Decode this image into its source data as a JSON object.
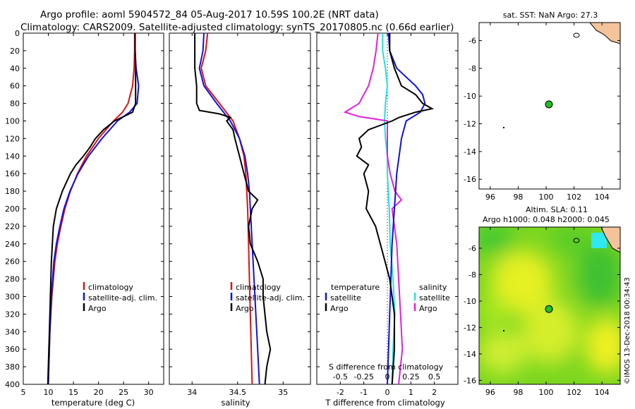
{
  "header": {
    "line1": "Argo profile: aoml 5904572_84 05-Aug-2017 10.59S 100.2E (NRT data)",
    "line2": "Climatology: CARS2009. Satellite-adjusted climatology: synTS_20170805.nc (0.66d earlier)"
  },
  "colors": {
    "climatology": "#e01010",
    "satellite": "#1010e0",
    "argo": "#000000",
    "sat_salinity": "#20e0e0",
    "argo_salinity": "#e020e0",
    "land": "#f5c39a",
    "marker": "#20c020"
  },
  "watermark": "©IMOS 13-Dec-2018 00:34:43",
  "chart_data": [
    {
      "type": "line",
      "name": "temperature",
      "xlabel": "temperature (deg C)",
      "xlim": [
        5,
        33
      ],
      "xticks": [
        5,
        10,
        15,
        20,
        25,
        30
      ],
      "ylim": [
        0,
        400
      ],
      "yticks": [
        0,
        20,
        40,
        60,
        80,
        100,
        120,
        140,
        160,
        180,
        200,
        220,
        240,
        260,
        280,
        300,
        320,
        340,
        360,
        380,
        400
      ],
      "legend": [
        "climatology",
        "satellite-adj. clim.",
        "Argo"
      ],
      "series": [
        {
          "name": "climatology",
          "color": "#e01010",
          "depth": [
            0,
            20,
            40,
            60,
            80,
            90,
            100,
            120,
            140,
            160,
            180,
            200,
            220,
            240,
            260,
            300,
            340,
            380,
            400
          ],
          "values": [
            27.2,
            27.2,
            27.1,
            26.8,
            25.9,
            24.8,
            23.0,
            20.0,
            17.6,
            15.8,
            14.4,
            13.3,
            12.5,
            11.8,
            11.3,
            10.7,
            10.3,
            10.1,
            10.0
          ]
        },
        {
          "name": "satellite-adj. clim.",
          "color": "#1010e0",
          "depth": [
            0,
            20,
            40,
            60,
            80,
            90,
            100,
            120,
            140,
            160,
            180,
            200,
            220,
            240,
            260,
            300,
            340,
            380,
            400
          ],
          "values": [
            27.3,
            27.3,
            27.5,
            28.0,
            27.7,
            26.2,
            23.8,
            20.7,
            18.0,
            15.9,
            14.3,
            13.1,
            12.3,
            11.6,
            11.1,
            10.6,
            10.3,
            10.1,
            10.0
          ]
        },
        {
          "name": "Argo",
          "color": "#000000",
          "depth": [
            0,
            20,
            40,
            60,
            80,
            90,
            100,
            110,
            120,
            130,
            140,
            150,
            160,
            170,
            180,
            200,
            220,
            240,
            260,
            300,
            340,
            380,
            400
          ],
          "values": [
            27.3,
            27.3,
            27.4,
            27.4,
            27.4,
            26.8,
            23.2,
            21.0,
            19.4,
            18.3,
            17.0,
            15.5,
            14.4,
            13.6,
            12.8,
            11.6,
            11.0,
            10.8,
            10.6,
            10.4,
            10.2,
            10.0,
            9.9
          ]
        }
      ]
    },
    {
      "type": "line",
      "name": "salinity",
      "xlabel": "salinity",
      "xlim": [
        33.75,
        35.3
      ],
      "xticks": [
        34,
        34.5,
        35
      ],
      "ylim": [
        0,
        400
      ],
      "legend": [
        "climatology",
        "satellite-adj. clim.",
        "Argo"
      ],
      "series": [
        {
          "name": "climatology",
          "color": "#e01010",
          "depth": [
            0,
            20,
            40,
            60,
            80,
            100,
            120,
            140,
            160,
            180,
            200,
            240,
            280,
            320,
            360,
            400
          ],
          "values": [
            34.17,
            34.15,
            34.1,
            34.15,
            34.3,
            34.45,
            34.52,
            34.57,
            34.59,
            34.6,
            34.61,
            34.62,
            34.63,
            34.64,
            34.65,
            34.66
          ]
        },
        {
          "name": "satellite-adj. clim.",
          "color": "#1010e0",
          "depth": [
            0,
            20,
            40,
            60,
            80,
            100,
            120,
            140,
            160,
            180,
            200,
            240,
            280,
            320,
            360,
            400
          ],
          "values": [
            34.13,
            34.12,
            34.08,
            34.13,
            34.27,
            34.42,
            34.52,
            34.58,
            34.61,
            34.63,
            34.64,
            34.66,
            34.68,
            34.7,
            34.72,
            34.74
          ]
        },
        {
          "name": "Argo",
          "color": "#000000",
          "depth": [
            0,
            20,
            40,
            60,
            80,
            88,
            92,
            96,
            100,
            110,
            120,
            140,
            160,
            180,
            190,
            200,
            220,
            240,
            260,
            280,
            300,
            320,
            340,
            360,
            380,
            400
          ],
          "values": [
            34.03,
            34.03,
            34.03,
            34.05,
            34.05,
            34.08,
            34.3,
            34.42,
            34.38,
            34.45,
            34.47,
            34.52,
            34.57,
            34.62,
            34.72,
            34.66,
            34.62,
            34.64,
            34.72,
            34.78,
            34.78,
            34.8,
            34.82,
            34.86,
            34.82,
            34.8
          ]
        }
      ]
    },
    {
      "type": "line",
      "name": "difference",
      "xlabel": "T difference from climatology",
      "xlim": [
        -3,
        3
      ],
      "xticks": [
        -2,
        -1,
        0,
        1,
        2
      ],
      "secondary_xlabel": "S difference from climatology",
      "secondary_xticks": [
        "-0.5",
        "-0.25",
        "0",
        "0.25",
        "0.5"
      ],
      "ylim": [
        0,
        400
      ],
      "legend_left_title": "temperature",
      "legend_right_title": "salinity",
      "legend": [
        "satellite",
        "Argo"
      ],
      "series": [
        {
          "name": "T satellite",
          "color": "#1010e0",
          "depth": [
            0,
            20,
            40,
            60,
            70,
            80,
            90,
            100,
            110,
            120,
            140,
            160,
            200,
            240,
            280,
            320,
            360,
            400
          ],
          "values": [
            0.05,
            0.1,
            0.4,
            1.2,
            1.5,
            1.6,
            1.4,
            0.8,
            0.7,
            0.6,
            0.5,
            0.4,
            0.3,
            0.2,
            0.15,
            0.1,
            0.05,
            0.0
          ]
        },
        {
          "name": "T Argo",
          "color": "#000000",
          "depth": [
            0,
            20,
            40,
            60,
            70,
            80,
            86,
            90,
            96,
            100,
            110,
            120,
            130,
            140,
            150,
            160,
            180,
            200,
            220,
            240,
            260,
            280,
            300,
            320,
            360,
            400
          ],
          "values": [
            0.1,
            0.1,
            0.3,
            0.6,
            1.2,
            1.5,
            1.9,
            1.2,
            0.5,
            0.2,
            -0.8,
            -1.2,
            -1.1,
            -1.3,
            -0.8,
            -1.0,
            -0.8,
            -0.9,
            -0.5,
            -0.3,
            -0.1,
            0.1,
            0.2,
            0.3,
            0.3,
            0.2
          ]
        }
      ],
      "salinity_series": [
        {
          "name": "S satellite",
          "color": "#20e0e0",
          "depth": [
            0,
            20,
            40,
            60,
            80,
            100,
            120,
            140,
            160,
            200,
            240,
            280,
            320,
            360,
            400
          ],
          "values": [
            -0.05,
            -0.05,
            -0.02,
            0.0,
            -0.02,
            -0.03,
            -0.02,
            0.0,
            0.0,
            0.02,
            0.03,
            0.06,
            0.08,
            0.06,
            0.05
          ]
        },
        {
          "name": "S Argo",
          "color": "#e020e0",
          "depth": [
            0,
            20,
            40,
            60,
            80,
            90,
            95,
            100,
            120,
            140,
            160,
            180,
            190,
            200,
            240,
            280,
            320,
            360,
            400
          ],
          "values": [
            -0.1,
            -0.12,
            -0.15,
            -0.2,
            -0.3,
            -0.45,
            -0.3,
            0.0,
            0.0,
            0.0,
            0.03,
            0.08,
            0.15,
            0.05,
            0.1,
            0.12,
            0.14,
            0.16,
            0.12
          ]
        }
      ]
    },
    {
      "type": "scatter",
      "name": "sst-map",
      "title": "sat. SST: NaN Argo: 27.3",
      "xlim": [
        95.2,
        105.3
      ],
      "xticks": [
        96,
        98,
        100,
        102,
        104
      ],
      "ylim": [
        -16.7,
        -4.7
      ],
      "yticks": [
        -6,
        -8,
        -10,
        -12,
        -14,
        -16
      ],
      "x": [
        100.2
      ],
      "y": [
        -10.6
      ]
    },
    {
      "type": "heatmap",
      "name": "sla-map",
      "title1": "Altim. SLA: 0.11",
      "title2": "Argo h1000: 0.048 h2000: 0.045",
      "xlim": [
        95.2,
        105.3
      ],
      "xticks": [
        96,
        98,
        100,
        102,
        104
      ],
      "ylim": [
        -16.3,
        -4.4
      ],
      "yticks": [
        -6,
        -8,
        -10,
        -12,
        -14,
        -16
      ],
      "x": [
        100.2
      ],
      "y": [
        -10.6
      ]
    }
  ]
}
